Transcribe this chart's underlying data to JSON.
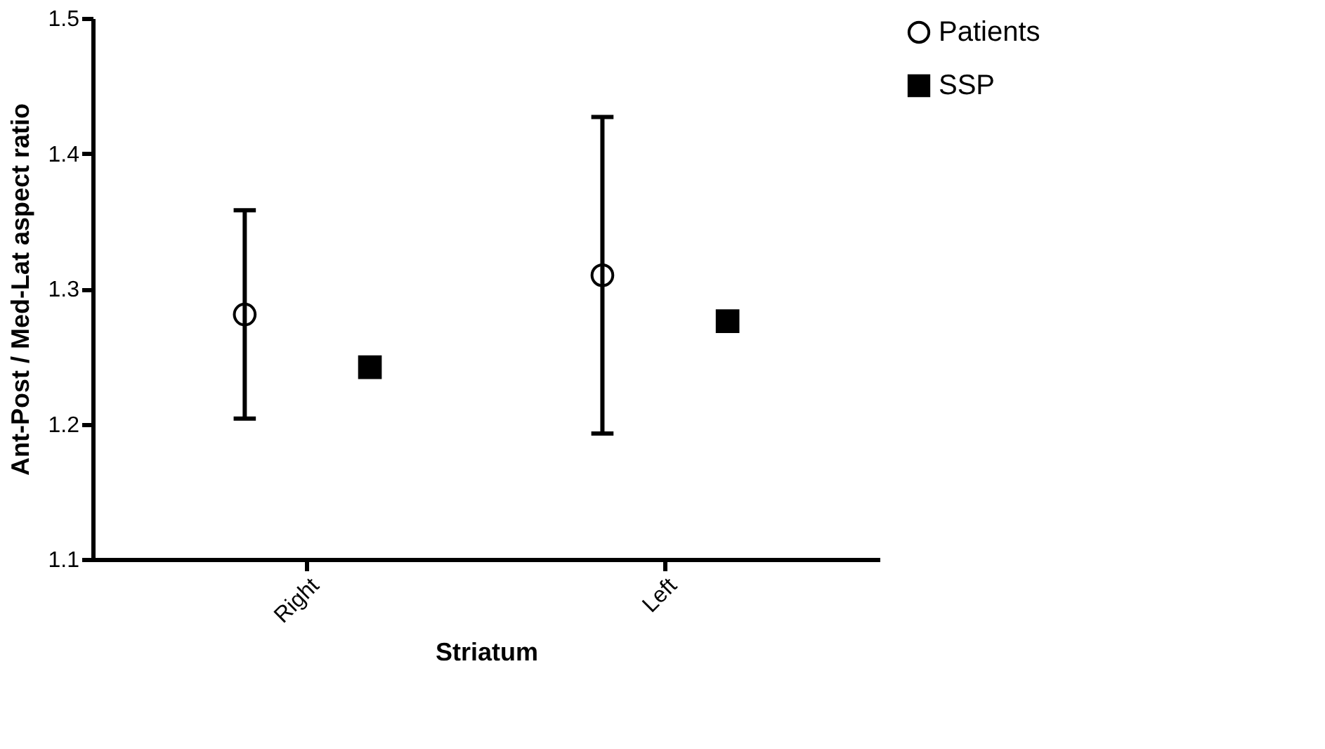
{
  "chart_data": {
    "type": "scatter",
    "xlabel": "Striatum",
    "ylabel": "Ant-Post / Med-Lat aspect ratio",
    "categories": [
      "Right",
      "Left"
    ],
    "series": [
      {
        "name": "Patients",
        "color": "#000000",
        "marker": "circle",
        "values": [
          1.281,
          1.31
        ],
        "errors": [
          0.077,
          0.117
        ]
      },
      {
        "name": "SSP",
        "color": "#000000",
        "marker": "square",
        "values": [
          1.242,
          1.276
        ]
      }
    ],
    "ylim": [
      1.1,
      1.5
    ],
    "yticks": [
      1.1,
      1.2,
      1.3,
      1.4,
      1.5
    ],
    "grid": false,
    "legend": "top right"
  }
}
